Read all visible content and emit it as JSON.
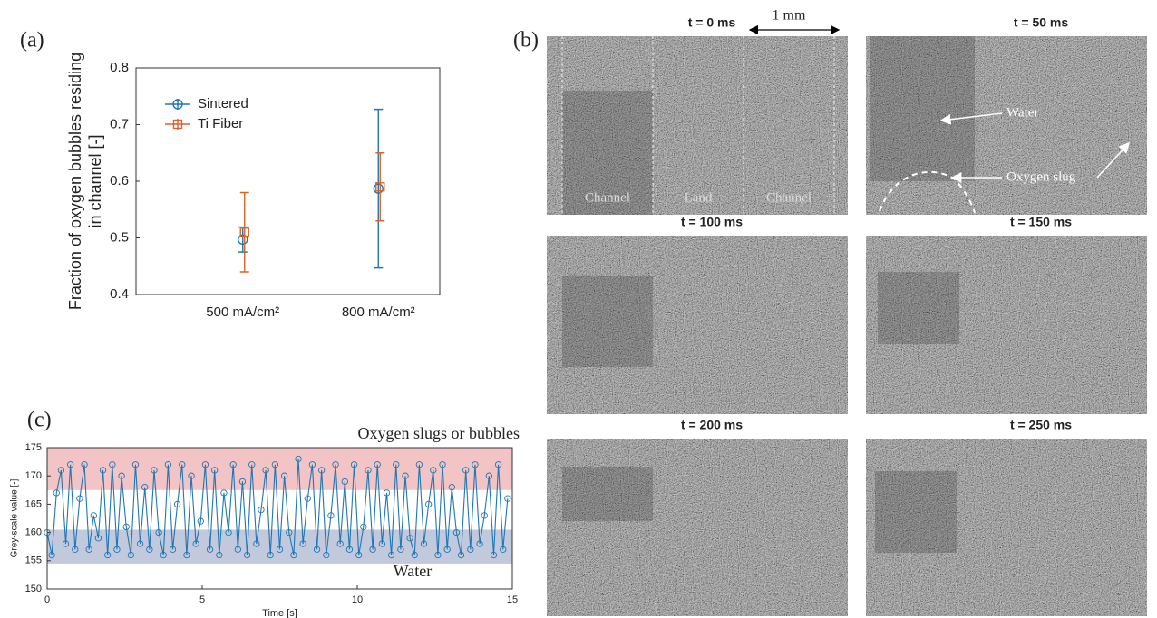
{
  "panel_labels": [
    "(a)",
    "(b)",
    "(c)"
  ],
  "chart_data": [
    {
      "type": "errorbar",
      "categories": [
        "500 mA/cm²",
        "800 mA/cm²"
      ],
      "ylabel": [
        "Fraction of oxygen bubbles residing",
        "in channel [-]"
      ],
      "ylim": [
        0.4,
        0.8
      ],
      "yticks": [
        0.4,
        0.5,
        0.6,
        0.7,
        0.8
      ],
      "legend": "upper left",
      "series": [
        {
          "name": "Sintered",
          "color": "#1f77b4",
          "marker": "circle",
          "values": [
            0.497,
            0.587
          ],
          "errors": [
            0.022,
            0.14
          ]
        },
        {
          "name": "Ti Fiber",
          "color": "#d9652b",
          "marker": "square",
          "values": [
            0.51,
            0.59
          ],
          "errors": [
            0.07,
            0.06
          ]
        }
      ]
    },
    {
      "type": "line",
      "xlabel": "Time [s]",
      "ylabel": "Grey-scale value [-]",
      "xlim": [
        0,
        15
      ],
      "xticks": [
        0,
        5,
        10,
        15
      ],
      "ylim": [
        150,
        175
      ],
      "yticks": [
        150,
        155,
        160,
        165,
        170,
        175
      ],
      "color": "#1f77b4",
      "marker": "circle",
      "bands": [
        {
          "from": 167.5,
          "to": 175,
          "color": "#f2c4c6",
          "label": "Oxygen slugs or bubbles",
          "label_color": "#b22222"
        },
        {
          "from": 154.5,
          "to": 160.5,
          "color": "#c2c9dc",
          "label": "Water",
          "label_color": "#1f3a7a"
        }
      ],
      "x": [
        0,
        0.15,
        0.3,
        0.45,
        0.6,
        0.75,
        0.9,
        1.05,
        1.2,
        1.35,
        1.5,
        1.65,
        1.8,
        1.95,
        2.1,
        2.25,
        2.4,
        2.55,
        2.7,
        2.85,
        3,
        3.15,
        3.3,
        3.45,
        3.6,
        3.75,
        3.9,
        4.05,
        4.2,
        4.35,
        4.5,
        4.65,
        4.8,
        4.95,
        5.1,
        5.25,
        5.4,
        5.55,
        5.7,
        5.85,
        6,
        6.15,
        6.3,
        6.45,
        6.6,
        6.75,
        6.9,
        7.05,
        7.2,
        7.35,
        7.5,
        7.65,
        7.8,
        7.95,
        8.1,
        8.25,
        8.4,
        8.55,
        8.7,
        8.85,
        9,
        9.15,
        9.3,
        9.45,
        9.6,
        9.75,
        9.9,
        10.05,
        10.2,
        10.35,
        10.5,
        10.65,
        10.8,
        10.95,
        11.1,
        11.25,
        11.4,
        11.55,
        11.7,
        11.85,
        12,
        12.15,
        12.3,
        12.45,
        12.6,
        12.75,
        12.9,
        13.05,
        13.2,
        13.35,
        13.5,
        13.65,
        13.8,
        13.95,
        14.1,
        14.25,
        14.4,
        14.55,
        14.7,
        14.85
      ],
      "values": [
        160,
        156,
        167,
        171,
        158,
        172,
        157,
        166,
        172,
        157,
        163,
        159,
        171,
        156,
        172,
        157,
        170,
        161,
        156,
        172,
        158,
        168,
        157,
        171,
        160,
        156,
        172,
        157,
        165,
        172,
        156,
        170,
        158,
        162,
        172,
        157,
        171,
        156,
        167,
        160,
        172,
        157,
        169,
        156,
        172,
        158,
        164,
        171,
        156,
        172,
        157,
        170,
        160,
        156,
        173,
        158,
        166,
        172,
        157,
        171,
        156,
        163,
        172,
        158,
        169,
        157,
        172,
        156,
        161,
        171,
        157,
        172,
        158,
        167,
        156,
        172,
        157,
        170,
        159,
        156,
        172,
        158,
        165,
        171,
        156,
        172,
        157,
        168,
        160,
        156,
        171,
        157,
        172,
        158,
        163,
        170,
        156,
        172,
        157,
        166
      ]
    }
  ],
  "images": {
    "frames": [
      "t = 0 ms",
      "t = 50 ms",
      "t = 100 ms",
      "t = 150 ms",
      "t = 200 ms",
      "t = 250 ms"
    ],
    "scale_label": "1 mm",
    "regions": [
      "Channel",
      "Land",
      "Channel"
    ],
    "annotations": [
      "Water",
      "Oxygen slug"
    ]
  }
}
